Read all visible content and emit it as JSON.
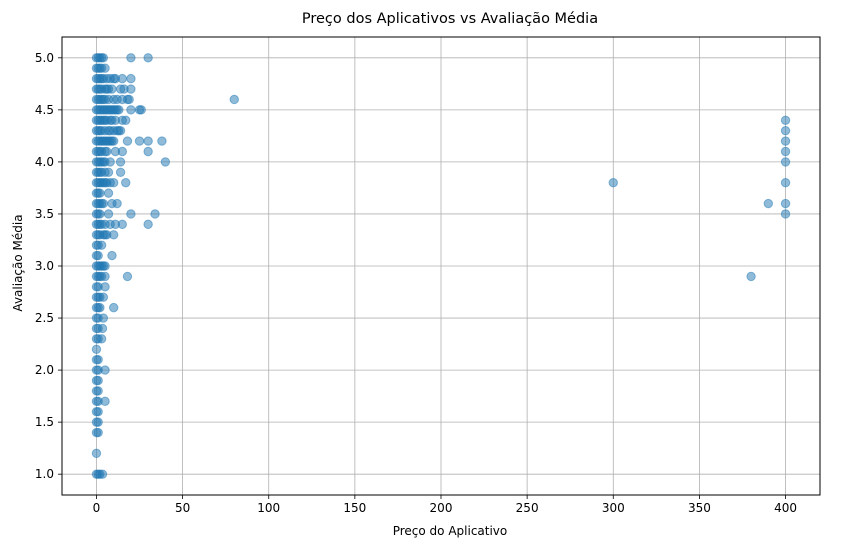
{
  "chart_data": {
    "type": "scatter",
    "title": "Preço dos Aplicativos vs Avaliação Média",
    "xlabel": "Preço do Aplicativo",
    "ylabel": "Avaliação Média",
    "xlim": [
      -20,
      420
    ],
    "ylim": [
      0.8,
      5.2
    ],
    "xticks": [
      0,
      50,
      100,
      150,
      200,
      250,
      300,
      350,
      400
    ],
    "yticks": [
      1.0,
      1.5,
      2.0,
      2.5,
      3.0,
      3.5,
      4.0,
      4.5,
      5.0
    ],
    "xtick_labels": [
      "0",
      "50",
      "100",
      "150",
      "200",
      "250",
      "300",
      "350",
      "400"
    ],
    "ytick_labels": [
      "1.0",
      "1.5",
      "2.0",
      "2.5",
      "3.0",
      "3.5",
      "4.0",
      "4.5",
      "5.0"
    ],
    "grid": true,
    "marker_color": "#1f77b4",
    "marker_alpha": 0.5,
    "series": [
      {
        "points": [
          [
            0,
            1.0
          ],
          [
            0,
            1.2
          ],
          [
            0,
            1.4
          ],
          [
            0,
            1.5
          ],
          [
            0,
            1.6
          ],
          [
            0,
            1.7
          ],
          [
            0,
            1.8
          ],
          [
            0,
            1.9
          ],
          [
            0,
            2.0
          ],
          [
            0,
            2.1
          ],
          [
            0,
            2.2
          ],
          [
            0,
            2.3
          ],
          [
            0,
            2.4
          ],
          [
            0,
            2.5
          ],
          [
            0,
            2.6
          ],
          [
            0,
            2.7
          ],
          [
            0,
            2.8
          ],
          [
            0,
            2.9
          ],
          [
            0,
            3.0
          ],
          [
            0,
            3.1
          ],
          [
            0,
            3.2
          ],
          [
            0,
            3.3
          ],
          [
            0,
            3.4
          ],
          [
            0,
            3.5
          ],
          [
            0,
            3.6
          ],
          [
            0,
            3.7
          ],
          [
            0,
            3.8
          ],
          [
            0,
            3.9
          ],
          [
            0,
            4.0
          ],
          [
            0,
            4.1
          ],
          [
            0,
            4.2
          ],
          [
            0,
            4.3
          ],
          [
            0,
            4.4
          ],
          [
            0,
            4.5
          ],
          [
            0,
            4.6
          ],
          [
            0,
            4.7
          ],
          [
            0,
            4.8
          ],
          [
            0,
            4.9
          ],
          [
            0,
            5.0
          ],
          [
            1,
            1.0
          ],
          [
            1,
            1.4
          ],
          [
            1,
            1.5
          ],
          [
            1,
            1.6
          ],
          [
            1,
            1.7
          ],
          [
            1,
            1.8
          ],
          [
            1,
            1.9
          ],
          [
            1,
            2.0
          ],
          [
            1,
            2.1
          ],
          [
            1,
            2.3
          ],
          [
            1,
            2.4
          ],
          [
            1,
            2.5
          ],
          [
            1,
            2.6
          ],
          [
            1,
            2.7
          ],
          [
            1,
            2.8
          ],
          [
            1,
            2.9
          ],
          [
            1,
            3.0
          ],
          [
            1,
            3.1
          ],
          [
            1,
            3.2
          ],
          [
            1,
            3.3
          ],
          [
            1,
            3.4
          ],
          [
            1,
            3.5
          ],
          [
            1,
            3.6
          ],
          [
            1,
            3.7
          ],
          [
            1,
            3.8
          ],
          [
            1,
            3.9
          ],
          [
            1,
            4.0
          ],
          [
            1,
            4.1
          ],
          [
            1,
            4.2
          ],
          [
            1,
            4.3
          ],
          [
            1,
            4.4
          ],
          [
            1,
            4.5
          ],
          [
            1,
            4.6
          ],
          [
            1,
            4.7
          ],
          [
            1,
            4.8
          ],
          [
            1,
            4.9
          ],
          [
            1,
            5.0
          ],
          [
            2,
            1.0
          ],
          [
            2,
            2.6
          ],
          [
            2,
            2.7
          ],
          [
            2,
            2.9
          ],
          [
            2,
            3.0
          ],
          [
            2,
            3.3
          ],
          [
            2,
            3.4
          ],
          [
            2,
            3.5
          ],
          [
            2,
            3.6
          ],
          [
            2,
            3.7
          ],
          [
            2,
            3.8
          ],
          [
            2,
            3.9
          ],
          [
            2,
            4.0
          ],
          [
            2,
            4.1
          ],
          [
            2,
            4.2
          ],
          [
            2,
            4.3
          ],
          [
            2,
            4.4
          ],
          [
            2,
            4.5
          ],
          [
            2,
            4.6
          ],
          [
            2,
            4.7
          ],
          [
            2,
            4.8
          ],
          [
            2,
            4.9
          ],
          [
            2,
            5.0
          ],
          [
            3,
            2.3
          ],
          [
            3,
            2.9
          ],
          [
            3,
            3.0
          ],
          [
            3,
            3.2
          ],
          [
            3,
            3.4
          ],
          [
            3,
            3.6
          ],
          [
            3,
            3.8
          ],
          [
            3,
            3.9
          ],
          [
            3,
            4.0
          ],
          [
            3,
            4.1
          ],
          [
            3,
            4.2
          ],
          [
            3,
            4.3
          ],
          [
            3,
            4.4
          ],
          [
            3,
            4.5
          ],
          [
            3,
            4.6
          ],
          [
            3,
            4.7
          ],
          [
            3,
            4.8
          ],
          [
            3,
            4.9
          ],
          [
            3,
            5.0
          ],
          [
            3.5,
            1.0
          ],
          [
            3.5,
            2.4
          ],
          [
            4,
            2.5
          ],
          [
            4,
            2.7
          ],
          [
            4,
            3.0
          ],
          [
            4,
            3.3
          ],
          [
            4,
            3.6
          ],
          [
            4,
            3.8
          ],
          [
            4,
            4.0
          ],
          [
            4,
            4.2
          ],
          [
            4,
            4.4
          ],
          [
            4,
            4.5
          ],
          [
            4,
            4.6
          ],
          [
            4,
            4.8
          ],
          [
            4,
            5.0
          ],
          [
            5,
            1.7
          ],
          [
            5,
            2.0
          ],
          [
            5,
            2.8
          ],
          [
            5,
            2.9
          ],
          [
            5,
            3.0
          ],
          [
            5,
            3.3
          ],
          [
            5,
            3.4
          ],
          [
            5,
            3.8
          ],
          [
            5,
            3.9
          ],
          [
            5,
            4.0
          ],
          [
            5,
            4.1
          ],
          [
            5,
            4.2
          ],
          [
            5,
            4.3
          ],
          [
            5,
            4.4
          ],
          [
            5,
            4.5
          ],
          [
            5,
            4.6
          ],
          [
            5,
            4.7
          ],
          [
            5,
            4.9
          ],
          [
            6,
            3.3
          ],
          [
            6,
            3.8
          ],
          [
            6,
            4.1
          ],
          [
            6,
            4.2
          ],
          [
            6,
            4.4
          ],
          [
            6,
            4.5
          ],
          [
            6,
            4.7
          ],
          [
            6,
            4.8
          ],
          [
            7,
            3.5
          ],
          [
            7,
            3.7
          ],
          [
            7,
            3.9
          ],
          [
            7,
            4.2
          ],
          [
            7,
            4.3
          ],
          [
            7,
            4.5
          ],
          [
            7,
            4.6
          ],
          [
            7,
            4.7
          ],
          [
            8,
            3.4
          ],
          [
            8,
            3.8
          ],
          [
            8,
            4.0
          ],
          [
            8,
            4.2
          ],
          [
            8,
            4.3
          ],
          [
            8,
            4.4
          ],
          [
            8,
            4.5
          ],
          [
            8,
            4.8
          ],
          [
            9,
            3.1
          ],
          [
            9,
            3.6
          ],
          [
            9,
            4.2
          ],
          [
            9,
            4.4
          ],
          [
            9,
            4.5
          ],
          [
            9,
            4.7
          ],
          [
            10,
            2.6
          ],
          [
            10,
            3.3
          ],
          [
            10,
            3.8
          ],
          [
            10,
            4.2
          ],
          [
            10,
            4.3
          ],
          [
            10,
            4.5
          ],
          [
            10,
            4.6
          ],
          [
            10,
            4.8
          ],
          [
            11,
            3.4
          ],
          [
            11,
            4.1
          ],
          [
            11,
            4.4
          ],
          [
            11,
            4.5
          ],
          [
            11,
            4.8
          ],
          [
            12,
            3.6
          ],
          [
            12,
            4.3
          ],
          [
            12,
            4.5
          ],
          [
            12,
            4.6
          ],
          [
            13,
            4.3
          ],
          [
            13,
            4.5
          ],
          [
            14,
            3.9
          ],
          [
            14,
            4.0
          ],
          [
            14,
            4.3
          ],
          [
            14,
            4.7
          ],
          [
            15,
            3.4
          ],
          [
            15,
            4.1
          ],
          [
            15,
            4.4
          ],
          [
            15,
            4.6
          ],
          [
            15,
            4.8
          ],
          [
            16,
            4.7
          ],
          [
            17,
            3.8
          ],
          [
            17,
            4.4
          ],
          [
            18,
            2.9
          ],
          [
            18,
            4.2
          ],
          [
            18,
            4.6
          ],
          [
            19,
            4.6
          ],
          [
            20,
            3.5
          ],
          [
            20,
            4.5
          ],
          [
            20,
            4.7
          ],
          [
            20,
            4.8
          ],
          [
            20,
            5.0
          ],
          [
            25,
            4.2
          ],
          [
            25,
            4.5
          ],
          [
            26,
            4.5
          ],
          [
            30,
            3.4
          ],
          [
            30,
            4.1
          ],
          [
            30,
            4.2
          ],
          [
            30,
            5.0
          ],
          [
            34,
            3.5
          ],
          [
            38,
            4.2
          ],
          [
            40,
            4.0
          ],
          [
            80,
            4.6
          ],
          [
            300,
            3.8
          ],
          [
            380,
            2.9
          ],
          [
            390,
            3.6
          ],
          [
            400,
            3.5
          ],
          [
            400,
            3.6
          ],
          [
            400,
            3.8
          ],
          [
            400,
            4.0
          ],
          [
            400,
            4.1
          ],
          [
            400,
            4.2
          ],
          [
            400,
            4.3
          ],
          [
            400,
            4.4
          ]
        ]
      }
    ]
  }
}
